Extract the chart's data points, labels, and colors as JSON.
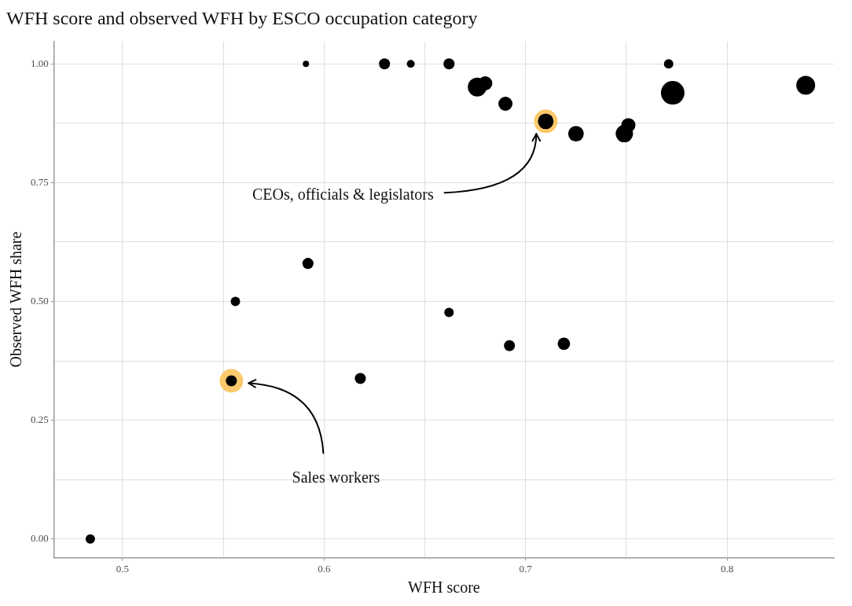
{
  "chart_data": {
    "type": "bubble",
    "title": "WFH score and observed WFH by ESCO occupation category",
    "xlabel": "WFH score",
    "ylabel": "Observed WFH share",
    "xlim": [
      0.466,
      0.853
    ],
    "xticks": [
      0.5,
      {
        "value": 0.55,
        "label": null
      },
      0.6,
      {
        "value": 0.65,
        "label": null
      },
      0.7,
      {
        "value": 0.75,
        "label": null
      },
      0.8
    ],
    "ylim": [
      -0.039,
      1.047
    ],
    "yticks": [
      {
        "value": 0,
        "label": "0.00"
      },
      {
        "value": 0.125,
        "label": null
      },
      {
        "value": 0.25,
        "label": "0.25"
      },
      {
        "value": 0.375,
        "label": null
      },
      {
        "value": 0.5,
        "label": "0.50"
      },
      {
        "value": 0.625,
        "label": null
      },
      {
        "value": 0.75,
        "label": "0.75"
      },
      {
        "value": 0.875,
        "label": null
      },
      {
        "value": 1,
        "label": "1.00"
      }
    ],
    "grid": true,
    "legend": false,
    "series": [
      {
        "type": "scatter",
        "color": "#fbc96b",
        "x": [
          0.71,
          0.554
        ],
        "values": [
          0.879,
          0.333
        ]
      },
      {
        "type": "bubble",
        "color": "#000000",
        "x": [
          0.484,
          0.554,
          0.556,
          0.591,
          0.592,
          0.618,
          0.63,
          0.643,
          0.662,
          0.662,
          0.676,
          0.68,
          0.69,
          0.692,
          0.71,
          0.719,
          0.725,
          0.749,
          0.751,
          0.771,
          0.773,
          0.839
        ],
        "values": [
          0,
          0.333,
          0.5,
          1,
          0.58,
          0.338,
          1,
          1,
          1,
          0.477,
          0.951,
          0.959,
          0.916,
          0.407,
          0.879,
          0.411,
          0.853,
          0.853,
          0.871,
          1,
          0.939,
          0.955
        ],
        "sizes": [
          0.16,
          0.22,
          0.16,
          0.07,
          0.22,
          0.22,
          0.22,
          0.11,
          0.22,
          0.16,
          0.64,
          0.36,
          0.36,
          0.22,
          0.44,
          0.28,
          0.44,
          0.54,
          0.36,
          0.16,
          1,
          0.64
        ]
      }
    ],
    "annotations": [
      "CEOs, officials & legislators",
      "Sales workers"
    ]
  }
}
